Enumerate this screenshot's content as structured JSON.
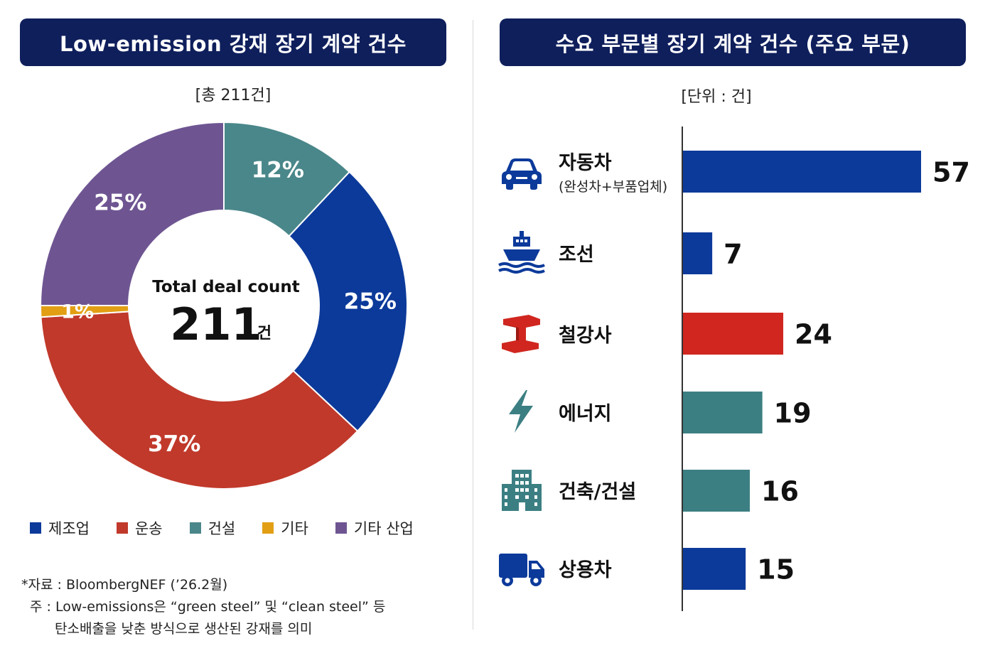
{
  "left_panel": {
    "header": "Low-emission 강재 장기 계약 건수",
    "unit": "[총 211건]",
    "center_title": "Total deal count",
    "center_value": "211",
    "center_unit": "건"
  },
  "right_panel": {
    "header": "수요 부문별 장기 계약 건수 (주요 부문)",
    "unit": "[단위 : 건]"
  },
  "notes": {
    "source": "*자료 : BloombergNEF (’26.2월)",
    "note_line1": "주 : Low-emissions은 “green steel” 및 “clean steel” 등",
    "note_line2": "탄소배출을 낮춘 방식으로 생산된 강재를 의미"
  },
  "colors": {
    "header_bg": "#0f1f5c",
    "manufacturing": "#0c3a9a",
    "transport": "#c0392b",
    "construction": "#4a878a",
    "other": "#e29f14",
    "other_industry": "#6e5592",
    "bar_blue": "#0c3a9a",
    "bar_red": "#d0261f",
    "bar_teal": "#3c7f83"
  },
  "chart_data": [
    {
      "type": "pie",
      "donut": true,
      "total": 211,
      "slices": [
        {
          "name": "건설",
          "value": 12,
          "label": "12%",
          "color": "#4a878a"
        },
        {
          "name": "제조업",
          "value": 25,
          "label": "25%",
          "color": "#0c3a9a"
        },
        {
          "name": "운송",
          "value": 37,
          "label": "37%",
          "color": "#c0392b"
        },
        {
          "name": "기타",
          "value": 1,
          "label": "1%",
          "color": "#e29f14"
        },
        {
          "name": "기타 산업",
          "value": 25,
          "label": "25%",
          "color": "#6e5592"
        }
      ],
      "legend": [
        {
          "name": "제조업",
          "color": "#0c3a9a"
        },
        {
          "name": "운송",
          "color": "#c0392b"
        },
        {
          "name": "건설",
          "color": "#4a878a"
        },
        {
          "name": "기타",
          "color": "#e29f14"
        },
        {
          "name": "기타 산업",
          "color": "#6e5592"
        }
      ],
      "legend_position": "bottom"
    },
    {
      "type": "bar",
      "orientation": "horizontal",
      "categories": [
        "자동차",
        "조선",
        "철강사",
        "에너지",
        "건축/건설",
        "상용차"
      ],
      "sublabels": [
        "(완성차+부품업체)",
        "",
        "",
        "",
        "",
        ""
      ],
      "icons": [
        "car-icon",
        "ship-icon",
        "steel-beam-icon",
        "lightning-icon",
        "building-icon",
        "truck-icon"
      ],
      "values": [
        57,
        7,
        24,
        19,
        16,
        15
      ],
      "value_labels": [
        "57",
        "7",
        "24",
        "19",
        "16",
        "15"
      ],
      "colors": [
        "#0c3a9a",
        "#0c3a9a",
        "#d0261f",
        "#3c7f83",
        "#3c7f83",
        "#0c3a9a"
      ],
      "xlim": [
        0,
        60
      ],
      "grid": false
    }
  ]
}
